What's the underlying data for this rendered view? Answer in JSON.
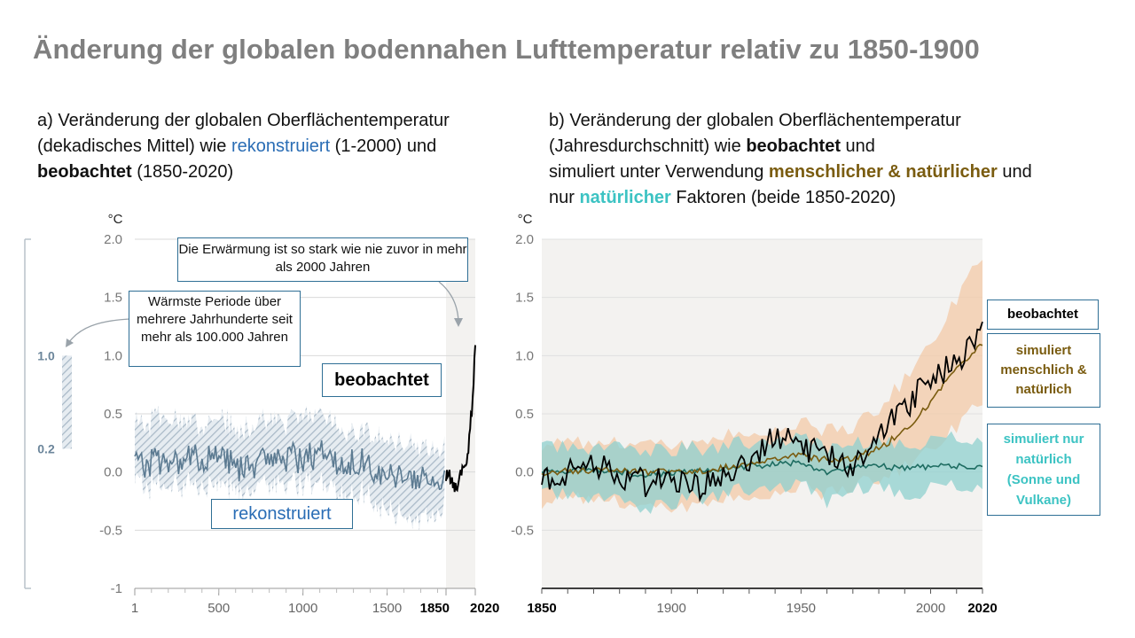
{
  "title": "Änderung der globalen bodennahen Lufttemperatur relativ zu 1850-1900",
  "panel_a": {
    "subtitle": {
      "part1": "a) Veränderung der globalen Oberflächentemperatur (dekadisches Mittel) wie ",
      "reconstructed_word": "rekonstruiert",
      "part2": " (1-2000)  und",
      "observed_word": "beobachtet",
      "part3": " (1850-2020)"
    },
    "unit": "°C",
    "callout_warming": "Die Erwärmung ist so stark wie nie zuvor in mehr als 2000 Jahren",
    "callout_warmest": "Wärmste Periode über mehrere Jahrhunderte seit mehr als 100.000 Jahren",
    "label_observed": "beobachtet",
    "label_reconstructed": "rekonstruiert",
    "side_range": {
      "upper_label": "1.0",
      "lower_label": "0.2",
      "upper": 1.0,
      "lower": 0.2
    }
  },
  "panel_b": {
    "subtitle": {
      "line1": "b) Veränderung der globalen Oberflächentemperatur",
      "line2a": "(Jahresdurchschnitt) wie ",
      "observed_word": "beobachtet",
      "line2b": " und",
      "line3a": "simuliert unter Verwendung ",
      "human_natural_word": "menschlicher & natürlicher",
      "line3b": " und",
      "line4a": "nur ",
      "natural_word": "natürlicher",
      "line4b": " Faktoren (beide 1850-2020)"
    },
    "unit": "°C",
    "legend_observed": "beobachtet",
    "legend_human_natural": "simuliert menschlich & natürlich",
    "legend_natural": "simuliert nur natürlich (Sonne und Vulkane)"
  },
  "colors": {
    "title": "#7f7f7f",
    "reconstructed": "#5b7a91",
    "reconstructed_band": "#b8c6d2",
    "observed": "#000000",
    "human_natural": "#7a5c10",
    "human_natural_band": "#f3c9a8",
    "natural": "#1f6d62",
    "natural_band": "#8fd0cf",
    "natural_text": "#3cc3c3",
    "plot_bg": "#f3f2f0",
    "box_border": "#2f6f95"
  },
  "chart_data": [
    {
      "type": "line",
      "x_ticks": [
        "1",
        "500",
        "1000",
        "1500",
        "1850",
        "2020"
      ],
      "y_ticks": [
        "2.0",
        "1.5",
        "1.0",
        "0.5",
        "0.0",
        "-0.5",
        "-1"
      ],
      "ylim": [
        -1,
        2
      ],
      "series": [
        {
          "name": "rekonstruiert",
          "x": [
            1,
            100,
            200,
            300,
            400,
            500,
            600,
            700,
            800,
            900,
            1000,
            1100,
            1200,
            1300,
            1400,
            1500,
            1600,
            1700,
            1800,
            1850
          ],
          "y": [
            0.08,
            0.1,
            0.12,
            0.14,
            0.12,
            0.1,
            0.06,
            0.08,
            0.1,
            0.12,
            0.13,
            0.12,
            0.1,
            0.05,
            0.02,
            0.0,
            -0.05,
            -0.06,
            -0.08,
            -0.1
          ],
          "lower": [
            -0.12,
            -0.1,
            -0.1,
            -0.08,
            -0.1,
            -0.12,
            -0.15,
            -0.14,
            -0.12,
            -0.1,
            -0.1,
            -0.12,
            -0.14,
            -0.2,
            -0.25,
            -0.3,
            -0.38,
            -0.4,
            -0.35,
            -0.3
          ],
          "upper": [
            0.4,
            0.45,
            0.5,
            0.45,
            0.4,
            0.42,
            0.38,
            0.4,
            0.42,
            0.45,
            0.5,
            0.45,
            0.4,
            0.35,
            0.32,
            0.3,
            0.25,
            0.22,
            0.2,
            0.15
          ]
        },
        {
          "name": "beobachtet",
          "x": [
            1850,
            1870,
            1890,
            1910,
            1930,
            1950,
            1970,
            1980,
            1990,
            2000,
            2010,
            2020
          ],
          "y": [
            -0.05,
            -0.02,
            -0.1,
            -0.15,
            0.0,
            0.05,
            0.05,
            0.2,
            0.4,
            0.55,
            0.8,
            1.09
          ]
        }
      ]
    },
    {
      "type": "line",
      "x_ticks": [
        "1850",
        "1900",
        "1950",
        "2000",
        "2020"
      ],
      "y_ticks": [
        "2.0",
        "1.5",
        "1.0",
        "0.5",
        "0.0",
        "-0.5"
      ],
      "xlim": [
        1850,
        2020
      ],
      "ylim": [
        -1,
        2
      ],
      "series": [
        {
          "name": "beobachtet",
          "x": [
            1850,
            1860,
            1870,
            1880,
            1890,
            1900,
            1910,
            1920,
            1930,
            1940,
            1950,
            1960,
            1970,
            1980,
            1990,
            2000,
            2010,
            2020
          ],
          "y": [
            -0.05,
            0.0,
            0.05,
            -0.02,
            -0.1,
            -0.05,
            -0.15,
            0.0,
            0.1,
            0.35,
            0.2,
            0.15,
            0.05,
            0.35,
            0.55,
            0.8,
            0.95,
            1.2
          ]
        },
        {
          "name": "simuliert menschlich & natürlich",
          "x": [
            1850,
            1870,
            1890,
            1910,
            1930,
            1950,
            1960,
            1970,
            1980,
            1990,
            2000,
            2010,
            2020
          ],
          "y": [
            0.0,
            0.02,
            0.0,
            0.0,
            0.08,
            0.15,
            0.1,
            0.12,
            0.2,
            0.35,
            0.6,
            0.9,
            1.1
          ],
          "lower": [
            -0.25,
            -0.22,
            -0.3,
            -0.28,
            -0.2,
            -0.12,
            -0.2,
            -0.1,
            -0.05,
            0.05,
            0.2,
            0.4,
            0.6
          ],
          "upper": [
            0.25,
            0.25,
            0.25,
            0.25,
            0.35,
            0.42,
            0.35,
            0.4,
            0.55,
            0.8,
            1.1,
            1.5,
            1.85
          ]
        },
        {
          "name": "simuliert nur natürlich (Sonne und Vulkane)",
          "x": [
            1850,
            1870,
            1890,
            1910,
            1930,
            1950,
            1960,
            1970,
            1980,
            1990,
            2000,
            2010,
            2020
          ],
          "y": [
            0.0,
            0.02,
            -0.02,
            0.0,
            0.05,
            0.08,
            0.0,
            0.05,
            0.05,
            0.03,
            0.05,
            0.05,
            0.05
          ],
          "lower": [
            -0.2,
            -0.2,
            -0.3,
            -0.22,
            -0.15,
            -0.12,
            -0.25,
            -0.15,
            -0.12,
            -0.2,
            -0.15,
            -0.12,
            -0.1
          ],
          "upper": [
            0.2,
            0.22,
            0.2,
            0.2,
            0.25,
            0.28,
            0.2,
            0.25,
            0.25,
            0.25,
            0.25,
            0.3,
            0.3
          ]
        }
      ]
    }
  ]
}
